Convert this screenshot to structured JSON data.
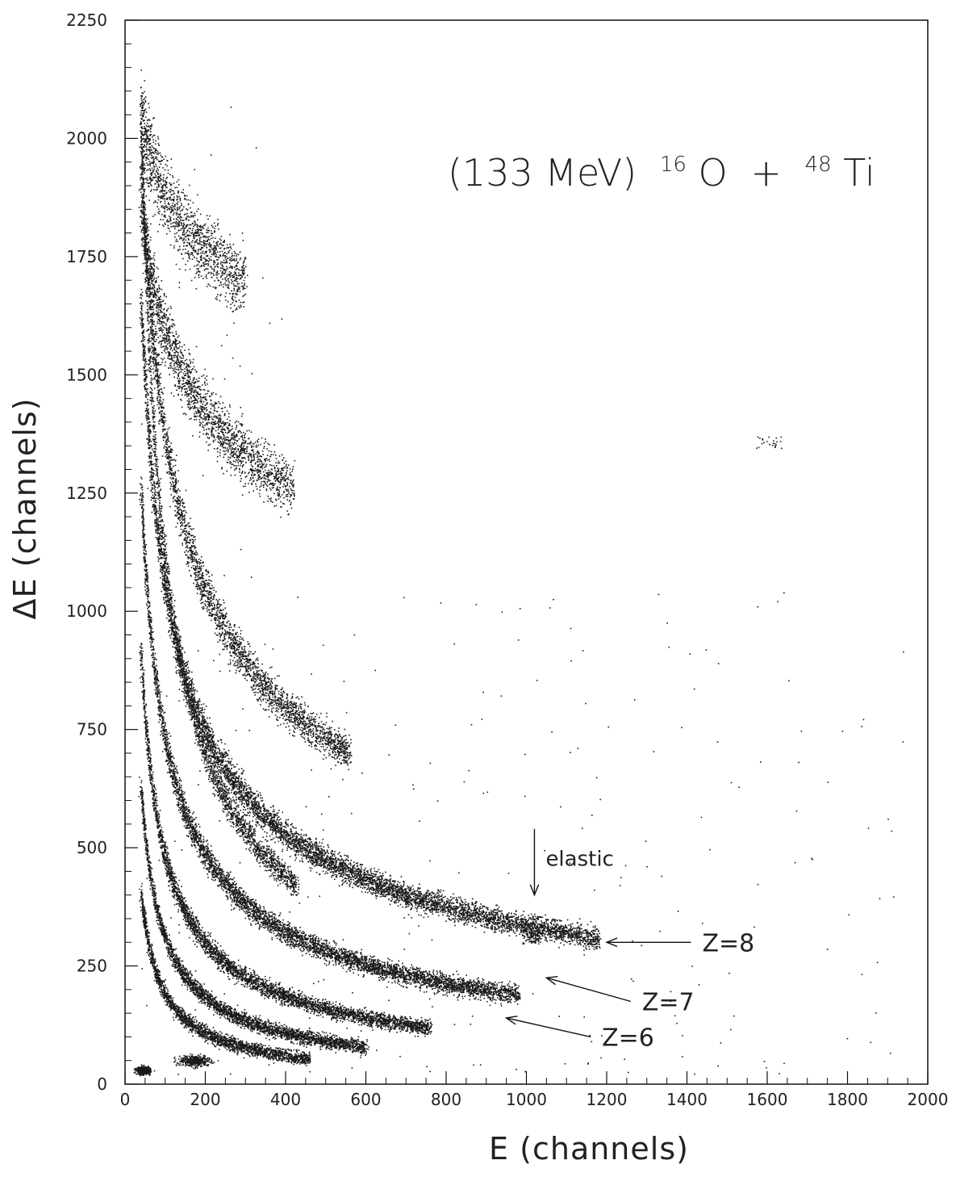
{
  "chart_data": {
    "type": "scatter",
    "title": "(133 MeV) ^16O + ^48Ti",
    "title_parts": {
      "prefix": "(133 MeV)",
      "a_mass": "16",
      "a_sym": "O",
      "plus": "+",
      "b_mass": "48",
      "b_sym": "Ti"
    },
    "xlabel": "E (channels)",
    "ylabel": "ΔE (channels)",
    "xlim": [
      0,
      2000
    ],
    "ylim": [
      0,
      2250
    ],
    "xticks": [
      0,
      200,
      400,
      600,
      800,
      1000,
      1200,
      1400,
      1600,
      1800,
      2000
    ],
    "yticks": [
      0,
      250,
      500,
      750,
      1000,
      1250,
      1500,
      1750,
      2000,
      2250
    ],
    "xtick_labels": [
      "0",
      "200",
      "400",
      "600",
      "800",
      "1000",
      "1200",
      "1400",
      "1600",
      "1800",
      "2000"
    ],
    "ytick_labels": [
      "0",
      "250",
      "500",
      "750",
      "1000",
      "1250",
      "1500",
      "1750",
      "2000",
      "2250"
    ],
    "grid": false,
    "marker_color": "#1a1a1a",
    "bands": [
      {
        "label": "Z=8",
        "x_start": 40,
        "x_end": 1180,
        "y_at_end": 310,
        "y_at_40": 1650
      },
      {
        "label": "Z=7",
        "x_start": 40,
        "x_end": 980,
        "y_at_end": 190,
        "y_at_40": 1250
      },
      {
        "label": "Z=6",
        "x_start": 40,
        "x_end": 760,
        "y_at_end": 120,
        "y_at_40": 900
      },
      {
        "x_start": 40,
        "x_end": 430,
        "y_at_end": 420,
        "y_at_40": 2020
      },
      {
        "x_start": 40,
        "x_end": 560,
        "y_at_end": 700,
        "y_at_40": 1950
      },
      {
        "x_start": 40,
        "x_end": 420,
        "y_at_end": 1260,
        "y_at_40": 1850
      },
      {
        "x_start": 40,
        "x_end": 300,
        "y_at_end": 1700,
        "y_at_40": 2040
      },
      {
        "x_start": 40,
        "x_end": 600,
        "y_at_end": 80,
        "y_at_40": 620
      },
      {
        "x_start": 40,
        "x_end": 460,
        "y_at_end": 55,
        "y_at_40": 400
      }
    ],
    "clusters": [
      {
        "x": 45,
        "y": 30
      },
      {
        "x": 170,
        "y": 50
      },
      {
        "x": 1015,
        "y": 315
      }
    ],
    "annotations": [
      {
        "text": "elastic",
        "arrow_from": [
          1020,
          540
        ],
        "arrow_to": [
          1020,
          400
        ]
      },
      {
        "text": "Z=8",
        "arrow_from": [
          1410,
          300
        ],
        "arrow_to": [
          1200,
          300
        ]
      },
      {
        "text": "Z=7",
        "arrow_from": [
          1260,
          175
        ],
        "arrow_to": [
          1050,
          225
        ]
      },
      {
        "text": "Z=6",
        "arrow_from": [
          1160,
          100
        ],
        "arrow_to": [
          950,
          140
        ]
      }
    ]
  }
}
